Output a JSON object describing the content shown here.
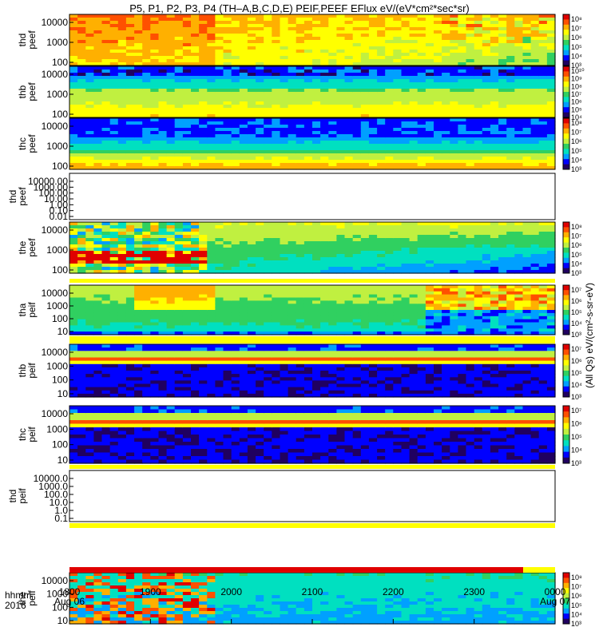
{
  "title": "P5, P1, P2, P3, P4 (TH–A,B,C,D,E) PEIF,PEEF EFlux eV/(eV*cm²*sec*sr)",
  "footer": {
    "time_label": "hhmm",
    "year_label": "2016",
    "x_ticks": [
      "1800",
      "1900",
      "2000",
      "2100",
      "2200",
      "2300",
      "0000"
    ],
    "x_dates": [
      "Aug 06",
      "",
      "",
      "",
      "",
      "",
      "Aug 07"
    ]
  },
  "colorbar_title_right": "eV/(cm²-s-sr-eV)",
  "colors": {
    "scale": [
      "#200060",
      "#0000ff",
      "#00a0ff",
      "#00e0c0",
      "#30d060",
      "#c0f040",
      "#ffff00",
      "#ffb000",
      "#ff5000",
      "#e00000"
    ],
    "missing": "#ffffff",
    "bar_yellow": "#ffff00",
    "bar_red": "#e00000"
  },
  "chart_data": {
    "type": "heatmap",
    "x_range": [
      "1800",
      "0000"
    ],
    "panels": [
      {
        "label": "thd peef",
        "yticks": [
          "10000",
          "1000",
          "100"
        ],
        "cbar_ticks": [
          "10⁸",
          "10⁷",
          "10⁶",
          "10⁵",
          "10⁴",
          "10³"
        ],
        "has_data": true,
        "pattern": "peef_hot"
      },
      {
        "label": "thb peef",
        "yticks": [
          "10000",
          "1000",
          "100"
        ],
        "cbar_ticks": [
          "10¹⁰",
          "10⁹",
          "10⁸",
          "10⁷",
          "10⁶",
          "10⁵",
          "10⁴"
        ],
        "has_data": true,
        "pattern": "bands_blue_top"
      },
      {
        "label": "thc peef",
        "yticks": [
          "10000",
          "1000",
          "100"
        ],
        "cbar_ticks": [
          "10⁸",
          "10⁷",
          "10⁶",
          "10⁵",
          "10⁴",
          "10³"
        ],
        "has_data": true,
        "pattern": "bands_red_bottom"
      },
      {
        "label": "thd peef",
        "yticks": [
          "10000.00",
          "1000.00",
          "100.00",
          "10.00",
          "1.00",
          "0.10",
          "0.01"
        ],
        "cbar_ticks": [],
        "has_data": false,
        "pattern": "empty"
      },
      {
        "label": "the peef",
        "yticks": [
          "10000",
          "1000",
          "100"
        ],
        "cbar_ticks": [
          "10⁸",
          "10⁷",
          "10⁶",
          "10⁵",
          "10⁴",
          "10³"
        ],
        "has_data": true,
        "pattern": "the_peef"
      },
      {
        "label": "tha peif",
        "yticks": [
          "10000",
          "1000",
          "100",
          "10"
        ],
        "cbar_ticks": [
          "10⁷",
          "10⁶",
          "10⁵",
          "10⁴",
          "10³"
        ],
        "has_data": true,
        "pattern": "peif_a"
      },
      {
        "label": "thb peif",
        "yticks": [
          "10000",
          "1000",
          "100",
          "10"
        ],
        "cbar_ticks": [
          "10⁷",
          "10⁶",
          "10⁵",
          "10⁴",
          "10³"
        ],
        "has_data": true,
        "pattern": "peif_band"
      },
      {
        "label": "thc peif",
        "yticks": [
          "10000",
          "1000",
          "100",
          "10"
        ],
        "cbar_ticks": [
          "10⁷",
          "10⁶",
          "10⁵",
          "10⁴",
          "10³"
        ],
        "has_data": true,
        "pattern": "peif_band"
      },
      {
        "label": "thd peif",
        "yticks": [
          "10000.0",
          "1000.0",
          "100.0",
          "10.0",
          "1.0",
          "0.1"
        ],
        "cbar_ticks": [],
        "has_data": false,
        "pattern": "empty"
      },
      {
        "label": "the peif",
        "yticks": [
          "10000",
          "1000",
          "100",
          "10"
        ],
        "cbar_ticks": [
          "10⁸",
          "10⁷",
          "10⁶",
          "10⁵",
          "10⁴",
          "10³"
        ],
        "has_data": true,
        "pattern": "the_peif"
      }
    ],
    "side_label": "(All Qs) eV/(cm²-s-sr-eV)"
  }
}
